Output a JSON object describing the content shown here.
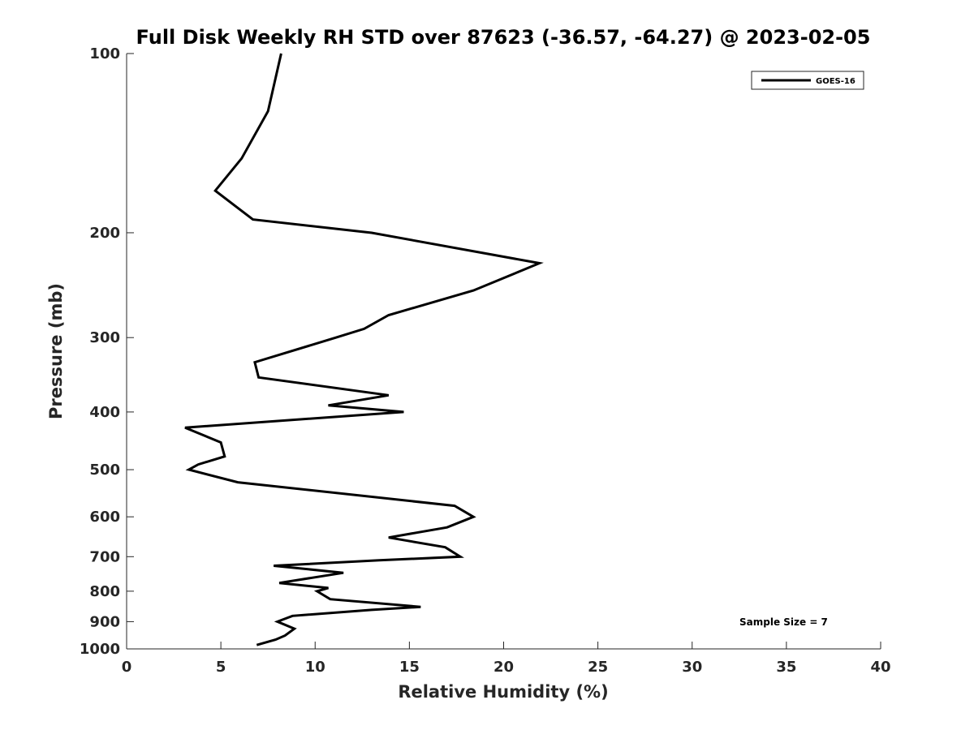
{
  "chart_data": {
    "type": "line",
    "title": "Full Disk Weekly RH STD over 87623 (-36.57, -64.27) @ 2023-02-05",
    "xlabel": "Relative Humidity (%)",
    "ylabel": "Pressure (mb)",
    "xlim": [
      0,
      40
    ],
    "ylim": [
      100,
      1000
    ],
    "y_scale": "log",
    "y_reversed": true,
    "xticks": [
      0,
      5,
      10,
      15,
      20,
      25,
      30,
      35,
      40
    ],
    "yticks": [
      100,
      200,
      300,
      400,
      500,
      600,
      700,
      800,
      900,
      1000
    ],
    "grid": false,
    "legend": "top-right",
    "annotation": "Sample Size = 7",
    "series": [
      {
        "name": "GOES-16",
        "color": "#000000",
        "points": [
          [
            8.2,
            100
          ],
          [
            7.5,
            125
          ],
          [
            6.1,
            150
          ],
          [
            4.7,
            170
          ],
          [
            6.7,
            190
          ],
          [
            13.0,
            200
          ],
          [
            21.9,
            225
          ],
          [
            18.4,
            250
          ],
          [
            13.9,
            275
          ],
          [
            12.6,
            290
          ],
          [
            11.1,
            300
          ],
          [
            6.8,
            330
          ],
          [
            7.0,
            350
          ],
          [
            13.9,
            375
          ],
          [
            10.7,
            390
          ],
          [
            14.7,
            400
          ],
          [
            3.1,
            425
          ],
          [
            5.0,
            450
          ],
          [
            5.2,
            475
          ],
          [
            3.8,
            490
          ],
          [
            3.3,
            500
          ],
          [
            5.9,
            525
          ],
          [
            17.4,
            575
          ],
          [
            18.4,
            600
          ],
          [
            17.0,
            625
          ],
          [
            13.9,
            650
          ],
          [
            16.9,
            675
          ],
          [
            17.7,
            700
          ],
          [
            13.4,
            710
          ],
          [
            7.8,
            725
          ],
          [
            11.5,
            745
          ],
          [
            8.1,
            775
          ],
          [
            10.7,
            790
          ],
          [
            10.1,
            800
          ],
          [
            10.8,
            825
          ],
          [
            15.6,
            850
          ],
          [
            13.0,
            860
          ],
          [
            8.8,
            880
          ],
          [
            8.0,
            900
          ],
          [
            8.9,
            925
          ],
          [
            8.4,
            950
          ],
          [
            7.9,
            965
          ],
          [
            6.9,
            985
          ]
        ]
      }
    ]
  }
}
